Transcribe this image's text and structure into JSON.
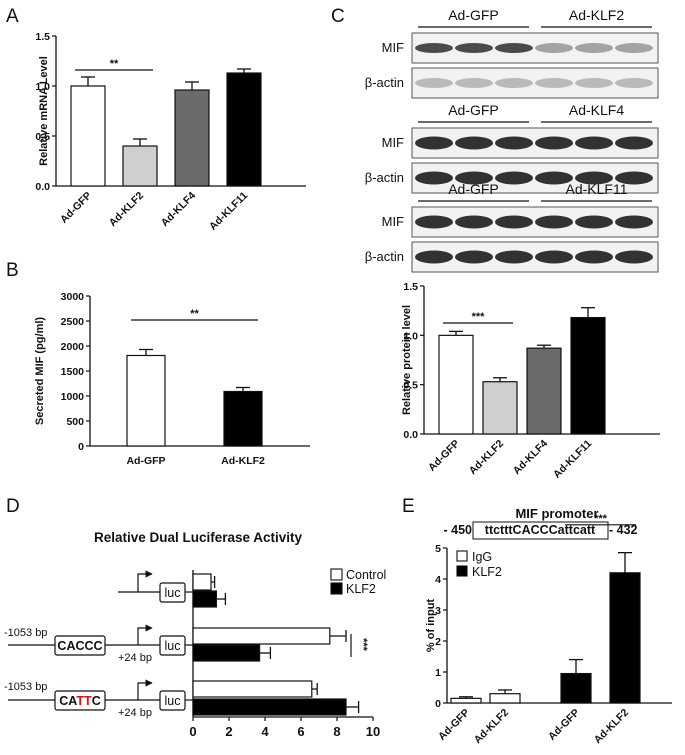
{
  "panels": {
    "a": "A",
    "b": "B",
    "c": "C",
    "d": "D",
    "e": "E"
  },
  "colors": {
    "white": "#ffffff",
    "light_gray": "#cfcfcf",
    "dark_gray": "#6b6b6b",
    "black": "#000000",
    "red": "#e01010"
  },
  "blots": [
    {
      "groups": [
        "Ad-GFP",
        "Ad-KLF2"
      ],
      "rows": [
        "MIF",
        "β-actin"
      ]
    },
    {
      "groups": [
        "Ad-GFP",
        "Ad-KLF4"
      ],
      "rows": [
        "MIF",
        "β-actin"
      ]
    },
    {
      "groups": [
        "Ad-GFP",
        "Ad-KLF11"
      ],
      "rows": [
        "MIF",
        "β-actin"
      ]
    }
  ],
  "constructs": {
    "luc": "luc",
    "row2": {
      "start": "-1053 bp",
      "box": "CACCC",
      "end": "+24 bp"
    },
    "row3": {
      "start": "-1053 bp",
      "box_pre": "CA",
      "box_mut": "TT",
      "box_post": "C",
      "end": "+24 bp"
    }
  },
  "promoter": {
    "title": "MIF promoter",
    "start": "- 450",
    "sequence": "ttctttCACCCattcatt",
    "end": "- 432"
  },
  "chart_data": [
    {
      "id": "A",
      "type": "bar",
      "ylabel": "Relative mRNA Level",
      "categories": [
        "Ad-GFP",
        "Ad-KLF2",
        "Ad-KLF4",
        "Ad-KLF11"
      ],
      "values": [
        1.0,
        0.4,
        0.96,
        1.13
      ],
      "errors": [
        0.09,
        0.07,
        0.08,
        0.04
      ],
      "fills": [
        "white",
        "light_gray",
        "dark_gray",
        "black"
      ],
      "ylim": [
        0,
        1.5
      ],
      "yticks": [
        "0.0",
        "0.5",
        "1.0",
        "1.5"
      ],
      "annotations": [
        {
          "text": "**",
          "from": 0,
          "to": 1
        }
      ]
    },
    {
      "id": "B",
      "type": "bar",
      "ylabel": "Secreted MIF (pg/ml)",
      "categories": [
        "Ad-GFP",
        "Ad-KLF2"
      ],
      "values": [
        1810,
        1090
      ],
      "errors": [
        120,
        80
      ],
      "fills": [
        "white",
        "black"
      ],
      "ylim": [
        0,
        3000
      ],
      "yticks": [
        "0",
        "500",
        "1000",
        "1500",
        "2000",
        "2500",
        "3000"
      ],
      "annotations": [
        {
          "text": "**",
          "from": 0,
          "to": 1
        }
      ]
    },
    {
      "id": "C",
      "type": "bar",
      "ylabel": "Relative protein level",
      "categories": [
        "Ad-GFP",
        "Ad-KLF2",
        "Ad-KLF4",
        "Ad-KLF11"
      ],
      "values": [
        1.0,
        0.53,
        0.87,
        1.18
      ],
      "errors": [
        0.04,
        0.04,
        0.03,
        0.1
      ],
      "fills": [
        "white",
        "light_gray",
        "dark_gray",
        "black"
      ],
      "ylim": [
        0,
        1.5
      ],
      "yticks": [
        "0.0",
        "0.5",
        "1.0",
        "1.5"
      ],
      "annotations": [
        {
          "text": "***",
          "from": 0,
          "to": 1
        }
      ]
    },
    {
      "id": "D",
      "type": "bar",
      "orientation": "horizontal",
      "title": "Relative Dual Luciferase Activity",
      "series": [
        {
          "name": "Control",
          "fill": "white",
          "values": [
            1.0,
            7.6,
            6.6
          ],
          "errors": [
            0.2,
            0.9,
            0.3
          ]
        },
        {
          "name": "KLF2",
          "fill": "black",
          "values": [
            1.3,
            3.7,
            8.5
          ],
          "errors": [
            0.5,
            0.6,
            0.7
          ]
        }
      ],
      "xlim": [
        0,
        10
      ],
      "xticks": [
        "0",
        "2",
        "4",
        "6",
        "8",
        "10"
      ],
      "legend": "top-right",
      "annotations": [
        {
          "text": "***",
          "group": 1
        }
      ]
    },
    {
      "id": "E",
      "type": "bar",
      "ylabel": "% of input",
      "categories": [
        "Ad-GFP",
        "Ad-KLF2",
        "Ad-GFP",
        "Ad-KLF2"
      ],
      "series": [
        {
          "name": "IgG",
          "fill": "white",
          "values": [
            0.15,
            0.3,
            null,
            null
          ],
          "errors": [
            0.05,
            0.12,
            null,
            null
          ]
        },
        {
          "name": "KLF2",
          "fill": "black",
          "values": [
            null,
            null,
            0.95,
            4.2
          ],
          "errors": [
            null,
            null,
            0.45,
            0.65
          ]
        }
      ],
      "ylim": [
        0,
        5
      ],
      "yticks": [
        "0",
        "1",
        "2",
        "3",
        "4",
        "5"
      ],
      "legend": "top-left",
      "annotations": [
        {
          "text": "***",
          "from": 2,
          "to": 3
        }
      ]
    }
  ]
}
